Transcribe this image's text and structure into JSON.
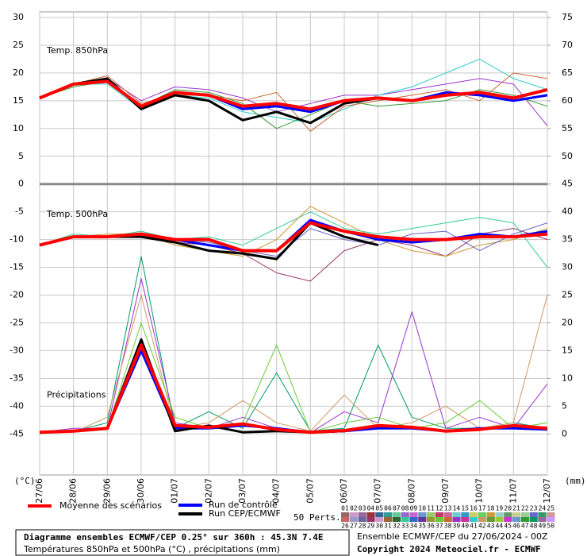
{
  "chart_data": {
    "type": "line",
    "categories": [
      "27/06",
      "28/06",
      "29/06",
      "30/06",
      "01/07",
      "02/07",
      "03/07",
      "04/07",
      "05/07",
      "06/07",
      "07/07",
      "08/07",
      "09/07",
      "10/07",
      "11/07",
      "12/07"
    ],
    "ylim": [
      -52.4,
      31
    ],
    "yticks": [
      30,
      25,
      20,
      15,
      10,
      5,
      0,
      -5,
      -10,
      -15,
      -20,
      -25,
      -30,
      -35,
      -40,
      -45
    ],
    "y2lim": [
      -7.4,
      76
    ],
    "y2ticks": [
      75,
      70,
      65,
      60,
      55,
      50,
      45,
      40,
      35,
      30,
      25,
      20,
      15,
      10,
      5,
      0
    ],
    "grid": true,
    "xlabel": "(°C)",
    "y2label": "(mm)",
    "panels": [
      {
        "label": "Temp. 850hPa",
        "axis": "y",
        "series": [
          {
            "name": "Moyenne des scénarios",
            "color": "#ff0000",
            "values": [
              15.5,
              18,
              18.5,
              14,
              16.5,
              16,
              14,
              14.5,
              13.5,
              15,
              15.5,
              15,
              16,
              16.5,
              15.5,
              17
            ]
          },
          {
            "name": "Run de contrôle",
            "color": "#0000ff",
            "values": [
              15.5,
              18,
              18.5,
              14,
              16.5,
              16,
              13.5,
              14,
              13,
              15,
              15.5,
              15,
              16.5,
              16,
              15,
              16
            ]
          },
          {
            "name": "Run CEP/ECMWF",
            "color": "#000000",
            "values": [
              15.5,
              18,
              19,
              13.5,
              16,
              15,
              11.5,
              13,
              11,
              14.5,
              15.5,
              null,
              null,
              null,
              null,
              null
            ]
          }
        ],
        "perturbations": [
          {
            "color": "#9933cc",
            "values": [
              15.5,
              18,
              19,
              15,
              17.5,
              17,
              15.5,
              13,
              14.5,
              16,
              16,
              17,
              18,
              19,
              18,
              10.5
            ]
          },
          {
            "color": "#33cccc",
            "values": [
              15.5,
              18,
              18,
              13.5,
              16,
              15.5,
              13,
              12,
              11,
              13.5,
              16,
              17.5,
              20,
              22.5,
              19,
              17
            ]
          },
          {
            "color": "#339933",
            "values": [
              15.5,
              17.5,
              18.5,
              14,
              17,
              16.5,
              14.5,
              10,
              12.5,
              15,
              14,
              14.5,
              15,
              17,
              16,
              14
            ]
          },
          {
            "color": "#cc6633",
            "values": [
              15.5,
              18,
              19.5,
              14.5,
              16,
              16,
              15,
              16.5,
              9.5,
              14,
              15,
              16,
              17,
              15,
              20,
              19
            ]
          }
        ]
      },
      {
        "label": "Temp. 500hPa",
        "axis": "y",
        "series": [
          {
            "name": "Moyenne des scénarios",
            "color": "#ff0000",
            "values": [
              -11,
              -9.5,
              -9.5,
              -9,
              -10,
              -10,
              -12,
              -12,
              -7,
              -8.5,
              -9.5,
              -10,
              -10,
              -9.5,
              -9.5,
              -9
            ]
          },
          {
            "name": "Run de contrôle",
            "color": "#0000ff",
            "values": [
              -11,
              -9.5,
              -9.5,
              -9,
              -10,
              -11,
              -12,
              -12,
              -6.5,
              -8.5,
              -10,
              -10.5,
              -10,
              -9,
              -9.5,
              -8.5
            ]
          },
          {
            "name": "Run CEP/ECMWF",
            "color": "#000000",
            "values": [
              -11,
              -9.5,
              -9.5,
              -9.5,
              -10.5,
              -12,
              -12.5,
              -13.5,
              -7,
              -9.5,
              -11,
              null,
              null,
              null,
              null,
              null
            ]
          }
        ],
        "perturbations": [
          {
            "color": "#993366",
            "values": [
              -11,
              -9.5,
              -9.5,
              -9,
              -10.5,
              -11,
              -12.5,
              -16,
              -17.5,
              -12,
              -10,
              -11,
              -13,
              -9,
              -8,
              -10
            ]
          },
          {
            "color": "#33cc99",
            "values": [
              -11,
              -9,
              -9.5,
              -8.5,
              -10,
              -9.5,
              -11,
              -8,
              -5,
              -8,
              -9,
              -8,
              -7,
              -6,
              -7,
              -15
            ]
          },
          {
            "color": "#cc9933",
            "values": [
              -11,
              -9.5,
              -9,
              -9,
              -11,
              -12,
              -13,
              -10,
              -4,
              -7,
              -10,
              -12,
              -13,
              -11,
              -10,
              -8
            ]
          },
          {
            "color": "#6666cc",
            "values": [
              -11,
              -9.5,
              -9.5,
              -9.5,
              -10,
              -10.5,
              -12,
              -13,
              -8,
              -10,
              -11,
              -9,
              -8.5,
              -12,
              -9,
              -7
            ]
          }
        ]
      },
      {
        "label": "Précipitations",
        "axis": "y2",
        "series": [
          {
            "name": "Moyenne des scénarios",
            "color": "#ff0000",
            "values": [
              0.3,
              0.5,
              1,
              16,
              1.5,
              1.2,
              1.8,
              0.8,
              0.3,
              0.6,
              1.5,
              1.2,
              0.5,
              0.8,
              1.5,
              1
            ]
          },
          {
            "name": "Run de contrôle",
            "color": "#0000ff",
            "values": [
              0.3,
              0.5,
              1,
              15,
              1,
              1,
              1.5,
              1,
              0.3,
              0.5,
              1,
              1,
              0.5,
              1,
              1,
              0.8
            ]
          },
          {
            "name": "Run CEP/ECMWF",
            "color": "#000000",
            "values": [
              0.3,
              0.5,
              1,
              17,
              0.5,
              1.5,
              0.3,
              0.5,
              0.3,
              0.5,
              1.5,
              null,
              null,
              null,
              null,
              null
            ]
          }
        ],
        "perturbations": [
          {
            "color": "#009966",
            "values": [
              0.3,
              0.5,
              2,
              32,
              1,
              4,
              1,
              11,
              0.5,
              1,
              16,
              3,
              1,
              1,
              2,
              1
            ]
          },
          {
            "color": "#9933cc",
            "values": [
              0.3,
              1,
              1,
              28,
              2,
              1,
              3,
              1,
              0.2,
              4,
              2,
              22,
              1,
              3,
              1,
              9
            ]
          },
          {
            "color": "#cc9966",
            "values": [
              0.3,
              0.3,
              3,
              25,
              1,
              2,
              6,
              2,
              0.5,
              7,
              1,
              2,
              5,
              1,
              2,
              25
            ]
          },
          {
            "color": "#66cc33",
            "values": [
              0.3,
              0.5,
              1,
              20,
              3,
              1,
              2,
              16,
              0.3,
              2,
              3,
              1,
              2,
              6,
              1,
              2
            ]
          }
        ]
      }
    ],
    "perturbation_label": "50 Perts.",
    "members": [
      {
        "label": "01",
        "color": "#996666"
      },
      {
        "label": "02",
        "color": "#cc99cc"
      },
      {
        "label": "03",
        "color": "#996699"
      },
      {
        "label": "04",
        "color": "#993333"
      },
      {
        "label": "05",
        "color": "#336699"
      },
      {
        "label": "06",
        "color": "#339999"
      },
      {
        "label": "07",
        "color": "#66cc99"
      },
      {
        "label": "08",
        "color": "#9966cc"
      },
      {
        "label": "09",
        "color": "#cc66cc"
      },
      {
        "label": "10",
        "color": "#6699cc"
      },
      {
        "label": "11",
        "color": "#99cc66"
      },
      {
        "label": "12",
        "color": "#cc3366"
      },
      {
        "label": "13",
        "color": "#cc6699"
      },
      {
        "label": "14",
        "color": "#66cccc"
      },
      {
        "label": "15",
        "color": "#3399cc"
      },
      {
        "label": "16",
        "color": "#cccc66"
      },
      {
        "label": "17",
        "color": "#66cc66"
      },
      {
        "label": "18",
        "color": "#cc9933"
      },
      {
        "label": "19",
        "color": "#99cccc"
      },
      {
        "label": "20",
        "color": "#669966"
      },
      {
        "label": "21",
        "color": "#cccc99"
      },
      {
        "label": "22",
        "color": "#99cc99"
      },
      {
        "label": "23",
        "color": "#6666cc"
      },
      {
        "label": "24",
        "color": "#339966"
      },
      {
        "label": "25",
        "color": "#cc9999"
      },
      {
        "label": "26",
        "color": "#cc6666"
      },
      {
        "label": "27",
        "color": "#9999cc"
      },
      {
        "label": "28",
        "color": "#666699"
      },
      {
        "label": "29",
        "color": "#993366"
      },
      {
        "label": "30",
        "color": "#cc99cc"
      },
      {
        "label": "31",
        "color": "#996633"
      },
      {
        "label": "32",
        "color": "#336633"
      },
      {
        "label": "33",
        "color": "#33cc99"
      },
      {
        "label": "34",
        "color": "#3366cc"
      },
      {
        "label": "35",
        "color": "#663399"
      },
      {
        "label": "36",
        "color": "#999933"
      },
      {
        "label": "37",
        "color": "#66cc33"
      },
      {
        "label": "38",
        "color": "#cc6633"
      },
      {
        "label": "39",
        "color": "#9933cc"
      },
      {
        "label": "40",
        "color": "#cc3399"
      },
      {
        "label": "41",
        "color": "#33cccc"
      },
      {
        "label": "42",
        "color": "#cc9966"
      },
      {
        "label": "43",
        "color": "#669933"
      },
      {
        "label": "44",
        "color": "#99cc33"
      },
      {
        "label": "45",
        "color": "#cc33cc"
      },
      {
        "label": "46",
        "color": "#6699cc"
      },
      {
        "label": "47",
        "color": "#339933"
      },
      {
        "label": "48",
        "color": "#009966"
      },
      {
        "label": "49",
        "color": "#996699"
      },
      {
        "label": "50",
        "color": "#cc99ff"
      }
    ],
    "footer": {
      "title": "Diagramme ensembles ECMWF/CEP 0.25° sur 360h : 45.3N 7.4E",
      "subtitle": "Températures 850hPa et 500hPa (°C) , précipitations (mm)",
      "run": "Ensemble ECMWF/CEP du 27/06/2024 - 00Z",
      "copyright": "Copyright 2024 Meteociel.fr - ECMWF"
    }
  }
}
